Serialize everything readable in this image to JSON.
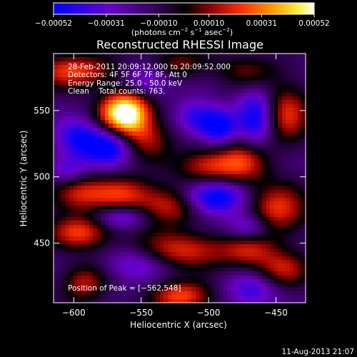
{
  "chart_data": {
    "type": "heatmap",
    "title": "Reconstructed RHESSI Image",
    "xlabel": "Heliocentric X (arcsec)",
    "ylabel": "Heliocentric Y (arcsec)",
    "xlim": [
      -615,
      -428
    ],
    "ylim": [
      405,
      593
    ],
    "x_ticks": [
      -600,
      -550,
      -500,
      -450
    ],
    "x_tick_labels": [
      "−600",
      "−550",
      "−500",
      "−450"
    ],
    "y_ticks": [
      450,
      500,
      550
    ],
    "y_tick_labels": [
      "450",
      "500",
      "550"
    ],
    "colorbar": {
      "label": "(photons cm⁻² s⁻¹ asec⁻²)",
      "range": [
        -0.00052,
        0.00052
      ],
      "ticks": [
        -0.00052,
        -0.00031,
        -0.0001,
        0.0001,
        0.00031,
        0.00052
      ],
      "tick_labels": [
        "−0.00052",
        "−0.00031",
        "−0.00010",
        "0.00010",
        "0.00031",
        "0.00052"
      ],
      "colormap": "blue-purple-black-red-orange-yellow-white"
    },
    "annotations": [
      "28-Feb-2011 20:09:12.000 to 20:09:52.000",
      "Detectors: 4F 5F 6F 7F 8F, Att 0",
      "Energy Range: 25.0 - 50.0 keV",
      "Clean    Total counts: 763."
    ],
    "peak_label": "Position of Peak = [−562,548]",
    "peak": {
      "x": -562,
      "y": 548
    },
    "features": [
      {
        "x": -562,
        "y": 548,
        "sx": 13,
        "sy": 11,
        "amp": 1.45
      },
      {
        "x": -548,
        "y": 528,
        "sx": 14,
        "sy": 11,
        "amp": 0.55
      },
      {
        "x": -600,
        "y": 580,
        "sx": 22,
        "sy": 9,
        "amp": 0.7
      },
      {
        "x": -525,
        "y": 585,
        "sx": 18,
        "sy": 8,
        "amp": 0.45
      },
      {
        "x": -470,
        "y": 580,
        "sx": 16,
        "sy": 9,
        "amp": 0.4
      },
      {
        "x": -442,
        "y": 548,
        "sx": 12,
        "sy": 16,
        "amp": 0.65
      },
      {
        "x": -500,
        "y": 508,
        "sx": 17,
        "sy": 10,
        "amp": 0.65
      },
      {
        "x": -473,
        "y": 512,
        "sx": 13,
        "sy": 12,
        "amp": 0.55
      },
      {
        "x": -600,
        "y": 488,
        "sx": 14,
        "sy": 10,
        "amp": 0.55
      },
      {
        "x": -565,
        "y": 487,
        "sx": 18,
        "sy": 10,
        "amp": 0.65
      },
      {
        "x": -528,
        "y": 478,
        "sx": 16,
        "sy": 10,
        "amp": 0.6
      },
      {
        "x": -450,
        "y": 475,
        "sx": 16,
        "sy": 14,
        "amp": 0.7
      },
      {
        "x": -595,
        "y": 458,
        "sx": 16,
        "sy": 9,
        "amp": 0.7
      },
      {
        "x": -520,
        "y": 445,
        "sx": 26,
        "sy": 10,
        "amp": 0.65
      },
      {
        "x": -470,
        "y": 445,
        "sx": 14,
        "sy": 10,
        "amp": 0.5
      },
      {
        "x": -445,
        "y": 430,
        "sx": 14,
        "sy": 10,
        "amp": 0.55
      },
      {
        "x": -520,
        "y": 410,
        "sx": 16,
        "sy": 8,
        "amp": 0.75
      },
      {
        "x": -593,
        "y": 420,
        "sx": 12,
        "sy": 10,
        "amp": 0.55
      },
      {
        "x": -575,
        "y": 523,
        "sx": 14,
        "sy": 10,
        "amp": -0.85
      },
      {
        "x": -598,
        "y": 530,
        "sx": 11,
        "sy": 10,
        "amp": -0.55
      },
      {
        "x": -545,
        "y": 575,
        "sx": 12,
        "sy": 9,
        "amp": -0.5
      },
      {
        "x": -510,
        "y": 545,
        "sx": 10,
        "sy": 9,
        "amp": -0.55
      },
      {
        "x": -493,
        "y": 538,
        "sx": 9,
        "sy": 9,
        "amp": -0.8
      },
      {
        "x": -465,
        "y": 545,
        "sx": 10,
        "sy": 16,
        "amp": -0.7
      },
      {
        "x": -497,
        "y": 485,
        "sx": 16,
        "sy": 9,
        "amp": -0.9
      },
      {
        "x": -565,
        "y": 470,
        "sx": 14,
        "sy": 6,
        "amp": -0.5
      },
      {
        "x": -605,
        "y": 505,
        "sx": 10,
        "sy": 8,
        "amp": -0.45
      },
      {
        "x": -470,
        "y": 462,
        "sx": 12,
        "sy": 8,
        "amp": -0.6
      },
      {
        "x": -555,
        "y": 435,
        "sx": 16,
        "sy": 9,
        "amp": -0.45
      },
      {
        "x": -468,
        "y": 415,
        "sx": 14,
        "sy": 9,
        "amp": -0.5
      }
    ]
  },
  "footer": {
    "date": "11-Aug-2013 21:07"
  }
}
